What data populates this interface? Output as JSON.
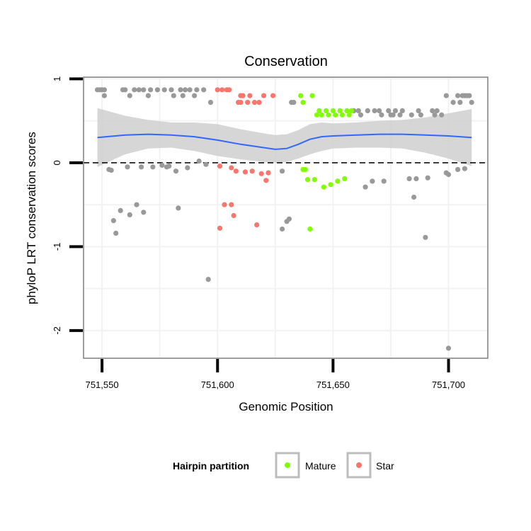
{
  "chart_data": {
    "type": "scatter",
    "title": "Conservation",
    "xlabel": "Genomic Position",
    "ylabel": "phyloP LRT conservation scores",
    "xlim": [
      751542,
      751717
    ],
    "ylim": [
      -2.33,
      1.02
    ],
    "x_ticks": [
      751550,
      751600,
      751650,
      751700
    ],
    "x_tick_labels": [
      "751,550",
      "751,600",
      "751,650",
      "751,700"
    ],
    "y_ticks": [
      -2,
      -1,
      0,
      1
    ],
    "y_tick_labels": [
      "-2",
      "-1",
      "0",
      "1"
    ],
    "grid": true,
    "reference_line": {
      "y": 0,
      "style": "dashed"
    },
    "legend": {
      "title": "Hairpin partition",
      "position": "bottom",
      "entries": [
        {
          "label": "Mature",
          "color": "#7FFF00"
        },
        {
          "label": "Star",
          "color": "#F8766D"
        }
      ]
    },
    "colors": {
      "other": "#999999",
      "mature": "#7FFF00",
      "star": "#F8766D",
      "smooth": "#3366FF",
      "ribbon": "#cfcfcf"
    },
    "series": [
      {
        "group": "other",
        "points": [
          [
            751548,
            0.87
          ],
          [
            751549,
            0.87
          ],
          [
            751550,
            0.87
          ],
          [
            751551,
            0.87
          ],
          [
            751551,
            0.8
          ],
          [
            751553,
            -0.08
          ],
          [
            751554,
            -0.09
          ],
          [
            751555,
            -0.69
          ],
          [
            751556,
            -0.84
          ],
          [
            751558,
            -0.57
          ],
          [
            751559,
            0.87
          ],
          [
            751560,
            0.87
          ],
          [
            751561,
            -0.05
          ],
          [
            751562,
            0.8
          ],
          [
            751562,
            -0.62
          ],
          [
            751564,
            0.87
          ],
          [
            751565,
            -0.5
          ],
          [
            751566,
            0.87
          ],
          [
            751567,
            -0.05
          ],
          [
            751568,
            0.87
          ],
          [
            751568,
            -0.59
          ],
          [
            751570,
            0.8
          ],
          [
            751571,
            0.87
          ],
          [
            751572,
            -0.05
          ],
          [
            751574,
            0.87
          ],
          [
            751576,
            -0.03
          ],
          [
            751577,
            0.87
          ],
          [
            751578,
            -0.05
          ],
          [
            751579,
            -0.04
          ],
          [
            751580,
            0.87
          ],
          [
            751581,
            0.8
          ],
          [
            751582,
            -0.1
          ],
          [
            751583,
            -0.54
          ],
          [
            751584,
            0.87
          ],
          [
            751585,
            0.8
          ],
          [
            751586,
            0.87
          ],
          [
            751587,
            -0.06
          ],
          [
            751588,
            0.87
          ],
          [
            751590,
            0.8
          ],
          [
            751591,
            0.87
          ],
          [
            751592,
            0.02
          ],
          [
            751594,
            0.87
          ],
          [
            751595,
            -0.02
          ],
          [
            751596,
            -1.39
          ],
          [
            751597,
            0.72
          ],
          [
            751628,
            -0.1
          ],
          [
            751628,
            -0.79
          ],
          [
            751630,
            -0.7
          ],
          [
            751631,
            -0.67
          ],
          [
            751632,
            0.72
          ],
          [
            751633,
            0.72
          ],
          [
            751659,
            0.62
          ],
          [
            751661,
            0.62
          ],
          [
            751662,
            0.57
          ],
          [
            751664,
            -0.29
          ],
          [
            751665,
            0.62
          ],
          [
            751667,
            -0.22
          ],
          [
            751668,
            0.62
          ],
          [
            751670,
            0.62
          ],
          [
            751671,
            0.57
          ],
          [
            751672,
            -0.22
          ],
          [
            751674,
            0.62
          ],
          [
            751675,
            0.57
          ],
          [
            751676,
            0.57
          ],
          [
            751677,
            0.62
          ],
          [
            751679,
            0.57
          ],
          [
            751680,
            0.62
          ],
          [
            751683,
            -0.19
          ],
          [
            751684,
            0.57
          ],
          [
            751685,
            -0.41
          ],
          [
            751686,
            -0.19
          ],
          [
            751687,
            0.62
          ],
          [
            751688,
            0.57
          ],
          [
            751690,
            -0.89
          ],
          [
            751691,
            -0.18
          ],
          [
            751693,
            0.62
          ],
          [
            751694,
            0.57
          ],
          [
            751695,
            0.62
          ],
          [
            751697,
            0.57
          ],
          [
            751699,
            0.8
          ],
          [
            751699,
            -0.12
          ],
          [
            751700,
            -2.21
          ],
          [
            751700,
            -0.14
          ],
          [
            751702,
            0.72
          ],
          [
            751704,
            0.8
          ],
          [
            751704,
            -0.08
          ],
          [
            751705,
            0.72
          ],
          [
            751706,
            0.8
          ],
          [
            751707,
            0.8
          ],
          [
            751707,
            -0.07
          ],
          [
            751708,
            0.8
          ],
          [
            751709,
            0.8
          ],
          [
            751710,
            0.72
          ]
        ]
      },
      {
        "group": "star",
        "points": [
          [
            751600,
            0.87
          ],
          [
            751601,
            -0.04
          ],
          [
            751601,
            -0.78
          ],
          [
            751602,
            0.87
          ],
          [
            751603,
            -0.5
          ],
          [
            751604,
            0.87
          ],
          [
            751605,
            0.87
          ],
          [
            751606,
            -0.5
          ],
          [
            751606,
            -0.06
          ],
          [
            751607,
            -0.63
          ],
          [
            751608,
            -0.1
          ],
          [
            751609,
            0.72
          ],
          [
            751610,
            0.8
          ],
          [
            751610,
            0.72
          ],
          [
            751611,
            0.8
          ],
          [
            751612,
            -0.11
          ],
          [
            751613,
            0.72
          ],
          [
            751614,
            0.8
          ],
          [
            751615,
            -0.1
          ],
          [
            751616,
            0.72
          ],
          [
            751617,
            -0.74
          ],
          [
            751618,
            0.72
          ],
          [
            751619,
            -0.13
          ],
          [
            751620,
            0.8
          ],
          [
            751621,
            -0.21
          ],
          [
            751622,
            -0.12
          ],
          [
            751624,
            0.8
          ]
        ]
      },
      {
        "group": "mature",
        "points": [
          [
            751636,
            0.8
          ],
          [
            751637,
            0.72
          ],
          [
            751637,
            -0.08
          ],
          [
            751638,
            -0.08
          ],
          [
            751639,
            -0.2
          ],
          [
            751640,
            -0.79
          ],
          [
            751641,
            0.8
          ],
          [
            751642,
            -0.2
          ],
          [
            751643,
            0.57
          ],
          [
            751644,
            0.62
          ],
          [
            751645,
            0.57
          ],
          [
            751646,
            -0.29
          ],
          [
            751647,
            0.62
          ],
          [
            751648,
            0.57
          ],
          [
            751649,
            -0.26
          ],
          [
            751650,
            0.62
          ],
          [
            751651,
            0.57
          ],
          [
            751652,
            -0.22
          ],
          [
            751653,
            0.62
          ],
          [
            751654,
            0.57
          ],
          [
            751655,
            -0.19
          ],
          [
            751656,
            0.62
          ],
          [
            751657,
            0.57
          ],
          [
            751658,
            0.62
          ]
        ]
      }
    ],
    "smooth": {
      "x": [
        751548,
        751560,
        751570,
        751580,
        751590,
        751600,
        751610,
        751620,
        751625,
        751630,
        751635,
        751640,
        751645,
        751650,
        751660,
        751670,
        751680,
        751690,
        751700,
        751710
      ],
      "y": [
        0.3,
        0.33,
        0.34,
        0.33,
        0.31,
        0.27,
        0.22,
        0.18,
        0.16,
        0.17,
        0.22,
        0.28,
        0.31,
        0.32,
        0.33,
        0.34,
        0.34,
        0.33,
        0.32,
        0.3
      ],
      "lower": [
        -0.05,
        0.1,
        0.17,
        0.18,
        0.14,
        0.08,
        0.04,
        0.01,
        0.0,
        0.01,
        0.05,
        0.1,
        0.14,
        0.17,
        0.18,
        0.18,
        0.17,
        0.12,
        0.05,
        -0.04
      ],
      "upper": [
        0.65,
        0.56,
        0.51,
        0.48,
        0.48,
        0.46,
        0.4,
        0.35,
        0.33,
        0.34,
        0.39,
        0.46,
        0.48,
        0.47,
        0.48,
        0.5,
        0.51,
        0.54,
        0.59,
        0.64
      ]
    }
  }
}
